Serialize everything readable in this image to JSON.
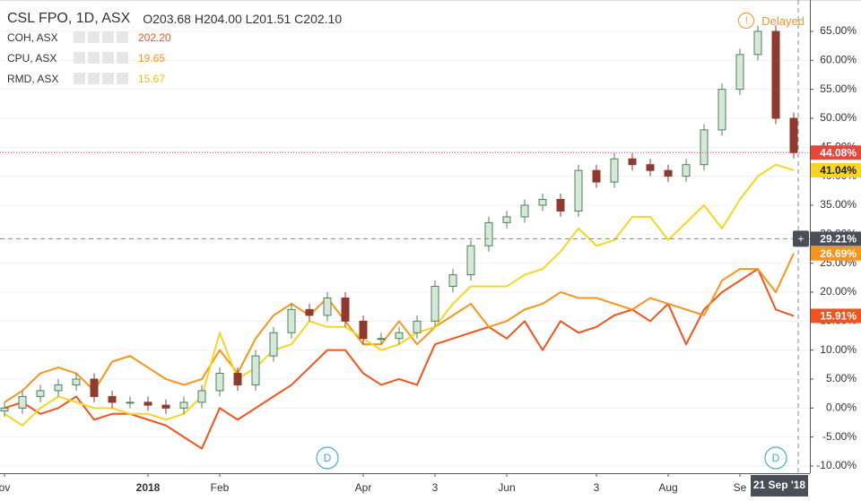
{
  "chart_data": {
    "type": "candlestick",
    "title": "CSL FPO, 1D, ASX",
    "ohlc": [
      "O203.68",
      "H204.00",
      "L201.51",
      "C202.10"
    ],
    "status": "Delayed",
    "categories": [
      "ov",
      null,
      null,
      null,
      null,
      null,
      null,
      null,
      "2018",
      null,
      null,
      null,
      "Feb",
      null,
      null,
      null,
      null,
      null,
      null,
      null,
      "Apr",
      null,
      null,
      null,
      "3",
      null,
      null,
      null,
      "Jun",
      null,
      null,
      null,
      null,
      "3",
      null,
      null,
      null,
      "Aug",
      null,
      null,
      null,
      "Se",
      null,
      null,
      null
    ],
    "ylim": [
      -11.24,
      70.41
    ],
    "yticks": [
      {
        "value": -10,
        "label": "-10.00%"
      },
      {
        "value": -5,
        "label": "-5.00%"
      },
      {
        "value": 0,
        "label": "0.00%"
      },
      {
        "value": 5,
        "label": "5.00%"
      },
      {
        "value": 10,
        "label": "10.00%"
      },
      {
        "value": 15,
        "label": "15.00%"
      },
      {
        "value": 20,
        "label": "20.00%"
      },
      {
        "value": 25,
        "label": "25.00%"
      },
      {
        "value": 30,
        "label": "30.00%"
      },
      {
        "value": 35,
        "label": "35.00%"
      },
      {
        "value": 40,
        "label": "40.00%"
      },
      {
        "value": 45,
        "label": "45.00%"
      },
      {
        "value": 50,
        "label": "50.00%"
      },
      {
        "value": 55,
        "label": "55.00%"
      },
      {
        "value": 60,
        "label": "60.00%"
      },
      {
        "value": 65,
        "label": "65.00%"
      }
    ],
    "grid": true,
    "series": [
      {
        "type": "candlestick",
        "color": "#e5483b",
        "up_color": "#d7e8d8",
        "up_line": "#4f7f5c",
        "down_color": "#8e3a2f",
        "open": [
          -0.5,
          0,
          2,
          3,
          4,
          5,
          2,
          1,
          1,
          0.5,
          0,
          1,
          3,
          6,
          4,
          9,
          13,
          17,
          16,
          19,
          15,
          12,
          12,
          13,
          15,
          21,
          23,
          28,
          32,
          33,
          35,
          36,
          34,
          41,
          39,
          43,
          42,
          41,
          40,
          42,
          48,
          55,
          61,
          65,
          50
        ],
        "high": [
          1,
          3,
          4,
          5,
          6,
          6,
          3,
          2,
          2,
          1.5,
          2,
          4,
          7,
          7,
          10,
          14,
          18,
          18,
          20,
          20,
          16,
          13,
          14,
          16,
          22,
          24,
          29,
          33,
          34,
          36,
          37,
          37,
          42,
          42,
          44,
          44,
          43,
          42,
          43,
          49,
          56,
          62,
          66,
          66,
          51
        ],
        "low": [
          -1.5,
          -1,
          1,
          2,
          3,
          1,
          0,
          0,
          -0.5,
          -1,
          -1,
          0,
          2,
          3,
          3,
          8,
          12,
          15,
          15,
          14,
          11,
          11,
          11,
          12,
          14,
          20,
          22,
          27,
          31,
          32,
          34,
          33,
          33,
          38,
          38,
          41,
          40,
          39,
          39,
          41,
          47,
          54,
          60,
          49,
          43.08
        ],
        "close": [
          0,
          2,
          3,
          4,
          5,
          2,
          1,
          1,
          0.5,
          0,
          1,
          3,
          6,
          4,
          9,
          13,
          17,
          16,
          19,
          15,
          12,
          12,
          13,
          15,
          21,
          23,
          28,
          32,
          33,
          35,
          36,
          34,
          41,
          39,
          43,
          42,
          41,
          40,
          42,
          48,
          55,
          61,
          65,
          50,
          44.08
        ],
        "last_label": "44.08%"
      },
      {
        "type": "line",
        "name": "COH, ASX",
        "price": "202.20",
        "color": "#f0541e",
        "values": [
          0,
          1,
          -1,
          0,
          2,
          -2,
          -1,
          -1,
          -2,
          -3,
          -5,
          -7,
          0,
          -2,
          0,
          2,
          4,
          7,
          10,
          10,
          6,
          4,
          5,
          4,
          11,
          12,
          13,
          14,
          12,
          15,
          10,
          15,
          13,
          14,
          16,
          17,
          15,
          18,
          11,
          17,
          20,
          22,
          24,
          17,
          15.91
        ],
        "last_label": "15.91%"
      },
      {
        "type": "line",
        "name": "CPU, ASX",
        "price": "19.65",
        "color": "#f7941d",
        "values": [
          1,
          3,
          6,
          7,
          6,
          3,
          8,
          9,
          7,
          5,
          4,
          5,
          10,
          6,
          12,
          16,
          18,
          16,
          19,
          15,
          11,
          11,
          15,
          11,
          14,
          16,
          18,
          14,
          15,
          17,
          18,
          20,
          19,
          19,
          18,
          17,
          19,
          18,
          17,
          16,
          22,
          24,
          24,
          20,
          26.69
        ],
        "last_label": "26.69%"
      },
      {
        "type": "line",
        "name": "RMD, ASX",
        "price": "15.67",
        "color": "#f4d623",
        "values": [
          -1,
          -3,
          0,
          2,
          1,
          0,
          0,
          -1,
          -1,
          -2,
          -1,
          2,
          13,
          5,
          7,
          10,
          11,
          15,
          14,
          14,
          12,
          10,
          11,
          13,
          14,
          18,
          21,
          21,
          21,
          23,
          24,
          27,
          31,
          28,
          29,
          33,
          33,
          29,
          32,
          35,
          31,
          36,
          40,
          42,
          41.04
        ],
        "last_label": "41.04%"
      }
    ],
    "crosshair": {
      "value": 29.21,
      "label": "29.21%",
      "index": 44,
      "date": "21 Sep '18"
    },
    "dividends": [
      {
        "label": "D",
        "index": 18
      },
      {
        "label": "D",
        "index": 43
      }
    ]
  }
}
